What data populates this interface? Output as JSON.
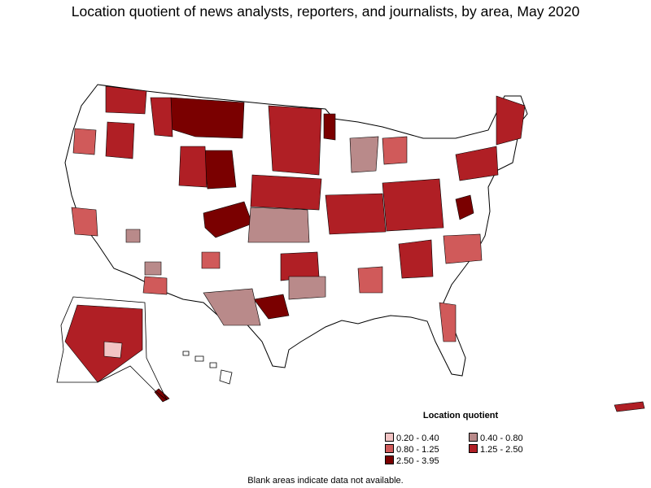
{
  "title": "Location quotient of news analysts, reporters, and journalists, by area, May 2020",
  "legend": {
    "title": "Location quotient",
    "items": [
      {
        "label": "0.20 - 0.40",
        "color": "#f2c4c4"
      },
      {
        "label": "0.40 - 0.80",
        "color": "#b98a8a"
      },
      {
        "label": "0.80 - 1.25",
        "color": "#d05a5a"
      },
      {
        "label": "1.25 - 2.50",
        "color": "#b01f25"
      },
      {
        "label": "2.50 - 3.95",
        "color": "#7a0000"
      }
    ]
  },
  "footnote": "Blank areas indicate data not available.",
  "colors": {
    "no_data": "#ffffff",
    "border": "#000000"
  }
}
